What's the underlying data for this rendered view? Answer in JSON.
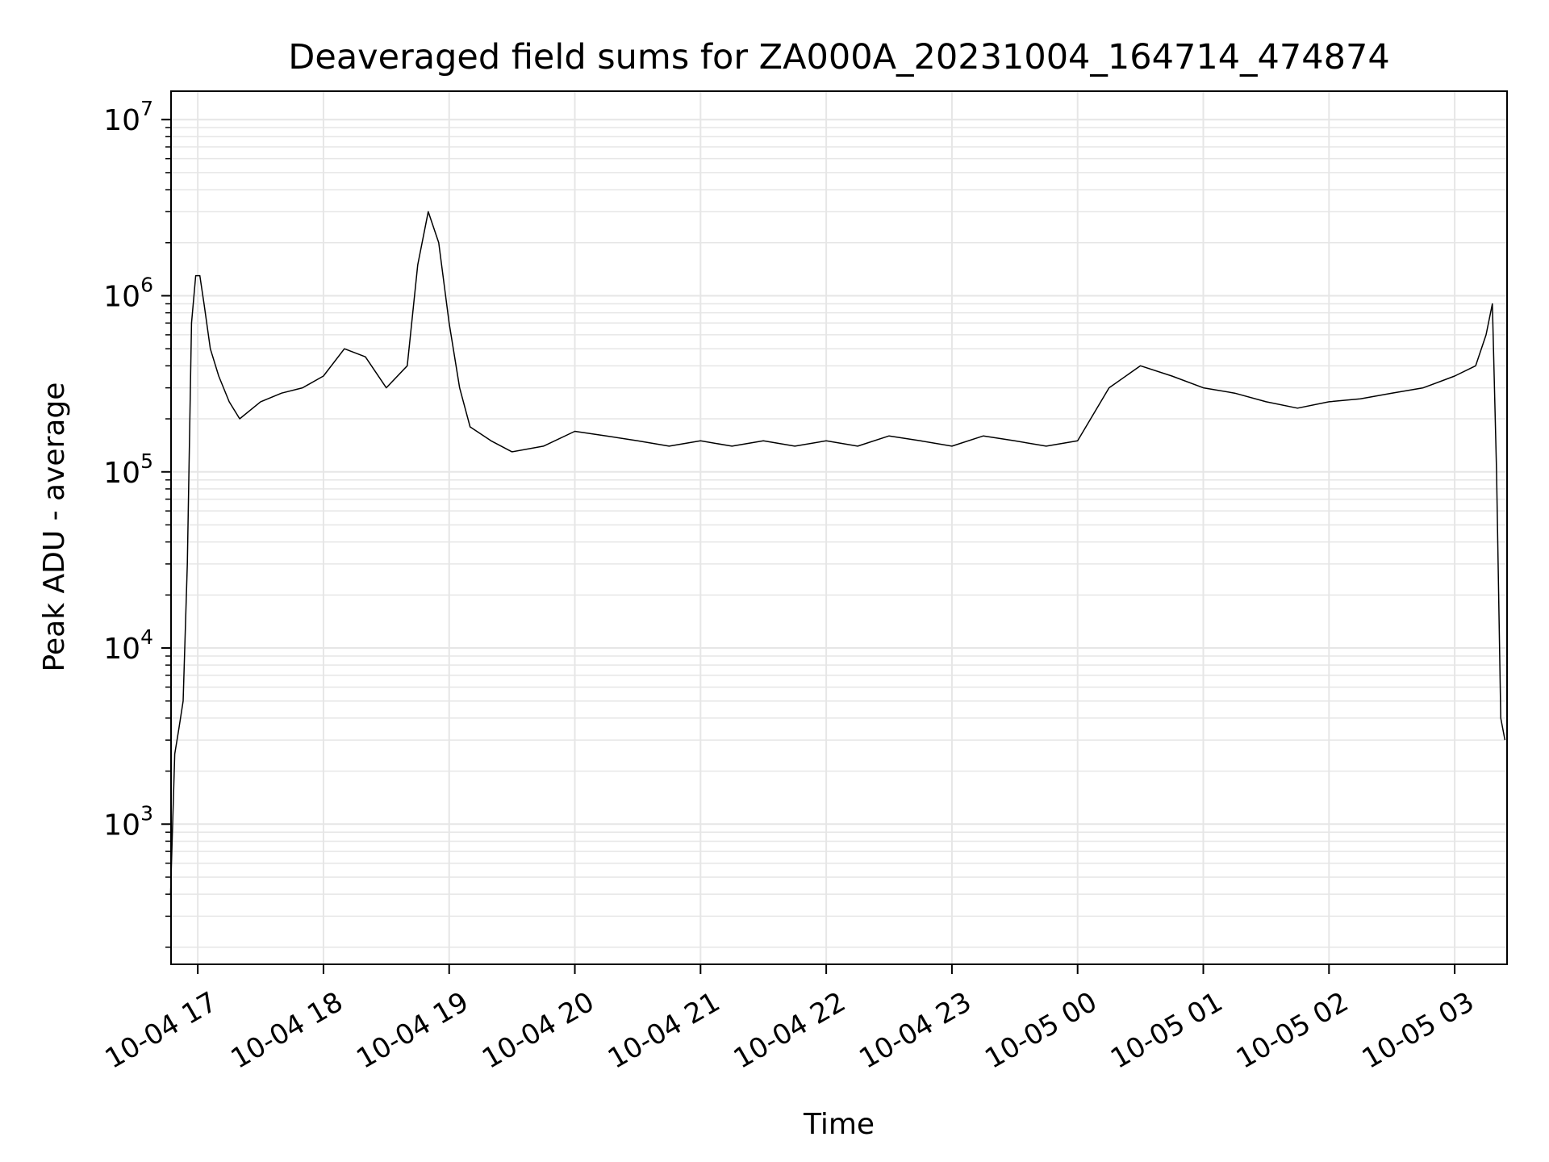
{
  "chart_data": {
    "type": "line",
    "title": "Deaveraged field sums for ZA000A_20231004_164714_474874",
    "xlabel": "Time",
    "ylabel": "Peak ADU - average",
    "yscale": "log",
    "ylim": [
      160,
      14500000
    ],
    "xlim": [
      "2023-10-04 16:47:14",
      "2023-10-05 03:25:00"
    ],
    "grid": true,
    "line_color": "#000000",
    "x_ticks": [
      "10-04 17",
      "10-04 18",
      "10-04 19",
      "10-04 20",
      "10-04 21",
      "10-04 22",
      "10-04 23",
      "10-05 00",
      "10-05 01",
      "10-05 02",
      "10-05 03"
    ],
    "x_tick_times": [
      "2023-10-04 17:00",
      "2023-10-04 18:00",
      "2023-10-04 19:00",
      "2023-10-04 20:00",
      "2023-10-04 21:00",
      "2023-10-04 22:00",
      "2023-10-04 23:00",
      "2023-10-05 00:00",
      "2023-10-05 01:00",
      "2023-10-05 02:00",
      "2023-10-05 03:00"
    ],
    "y_ticks": [
      1000,
      10000,
      100000,
      1000000,
      10000000
    ],
    "y_tick_labels": [
      {
        "base": "10",
        "exp": "3"
      },
      {
        "base": "10",
        "exp": "4"
      },
      {
        "base": "10",
        "exp": "5"
      },
      {
        "base": "10",
        "exp": "6"
      },
      {
        "base": "10",
        "exp": "7"
      }
    ],
    "series": [
      {
        "x": [
          "2023-10-04 16:47",
          "2023-10-04 16:49",
          "2023-10-04 16:51",
          "2023-10-04 16:53",
          "2023-10-04 16:55",
          "2023-10-04 16:57",
          "2023-10-04 16:59",
          "2023-10-04 17:01",
          "2023-10-04 17:03",
          "2023-10-04 17:06",
          "2023-10-04 17:10",
          "2023-10-04 17:15",
          "2023-10-04 17:20",
          "2023-10-04 17:30",
          "2023-10-04 17:40",
          "2023-10-04 17:50",
          "2023-10-04 18:00",
          "2023-10-04 18:10",
          "2023-10-04 18:20",
          "2023-10-04 18:30",
          "2023-10-04 18:40",
          "2023-10-04 18:45",
          "2023-10-04 18:50",
          "2023-10-04 18:55",
          "2023-10-04 19:00",
          "2023-10-04 19:05",
          "2023-10-04 19:10",
          "2023-10-04 19:20",
          "2023-10-04 19:30",
          "2023-10-04 19:45",
          "2023-10-04 20:00",
          "2023-10-04 20:15",
          "2023-10-04 20:30",
          "2023-10-04 20:45",
          "2023-10-04 21:00",
          "2023-10-04 21:15",
          "2023-10-04 21:30",
          "2023-10-04 21:45",
          "2023-10-04 22:00",
          "2023-10-04 22:15",
          "2023-10-04 22:30",
          "2023-10-04 22:45",
          "2023-10-04 23:00",
          "2023-10-04 23:15",
          "2023-10-04 23:30",
          "2023-10-04 23:45",
          "2023-10-05 00:00",
          "2023-10-05 00:15",
          "2023-10-05 00:30",
          "2023-10-05 00:45",
          "2023-10-05 01:00",
          "2023-10-05 01:15",
          "2023-10-05 01:30",
          "2023-10-05 01:45",
          "2023-10-05 02:00",
          "2023-10-05 02:15",
          "2023-10-05 02:30",
          "2023-10-05 02:45",
          "2023-10-05 03:00",
          "2023-10-05 03:10",
          "2023-10-05 03:15",
          "2023-10-05 03:18",
          "2023-10-05 03:20",
          "2023-10-05 03:22",
          "2023-10-05 03:24"
        ],
        "y": [
          400,
          2500,
          3500,
          5000,
          30000,
          700000,
          1300000,
          1300000,
          900000,
          500000,
          350000,
          250000,
          200000,
          250000,
          280000,
          300000,
          350000,
          500000,
          450000,
          300000,
          400000,
          1500000,
          3000000,
          2000000,
          700000,
          300000,
          180000,
          150000,
          130000,
          140000,
          170000,
          160000,
          150000,
          140000,
          150000,
          140000,
          150000,
          140000,
          150000,
          140000,
          160000,
          150000,
          140000,
          160000,
          150000,
          140000,
          150000,
          300000,
          400000,
          350000,
          300000,
          280000,
          250000,
          230000,
          250000,
          260000,
          280000,
          300000,
          350000,
          400000,
          600000,
          900000,
          100000,
          4000,
          3000
        ]
      }
    ]
  }
}
